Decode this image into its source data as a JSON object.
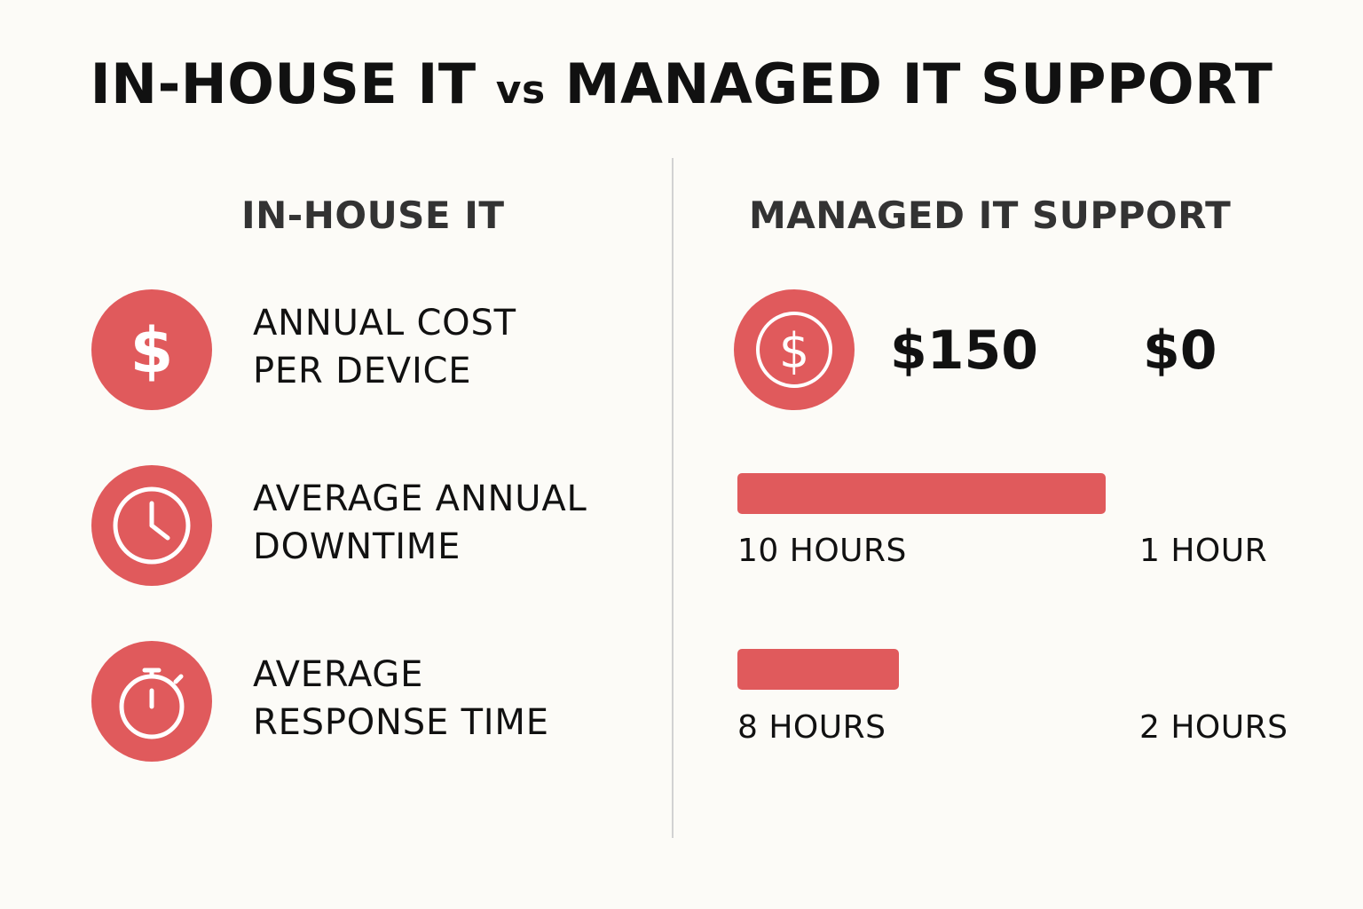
{
  "title": {
    "part1": "IN-HOUSE IT",
    "vs": "vs",
    "part2": "MANAGED IT SUPPORT"
  },
  "columns": {
    "left_heading": "IN-HOUSE IT",
    "right_heading": "MANAGED IT SUPPORT"
  },
  "metrics": [
    {
      "icon": "dollar-icon",
      "label_line1": "ANNUAL COST",
      "label_line2": "PER DEVICE"
    },
    {
      "icon": "clock-icon",
      "label_line1": "AVERAGE ANNUAL",
      "label_line2": "DOWNTIME"
    },
    {
      "icon": "stopwatch-icon",
      "label_line1": "AVERAGE",
      "label_line2": "RESPONSE TIME"
    }
  ],
  "managed": {
    "cost": {
      "icon": "dollar-coin-icon",
      "value_a": "$150",
      "value_b": "$0"
    },
    "downtime": {
      "bar_value_hours": 10,
      "label_a": "10 HOURS",
      "label_b": "1 HOUR"
    },
    "response": {
      "bar_value_hours": 8,
      "label_a": "8 HOURS",
      "label_b": "2 HOURS"
    }
  },
  "colors": {
    "accent": "#e05a5c",
    "background": "#fcfbf7",
    "text": "#111111",
    "heading": "#333333",
    "divider": "#d2d2d2"
  }
}
